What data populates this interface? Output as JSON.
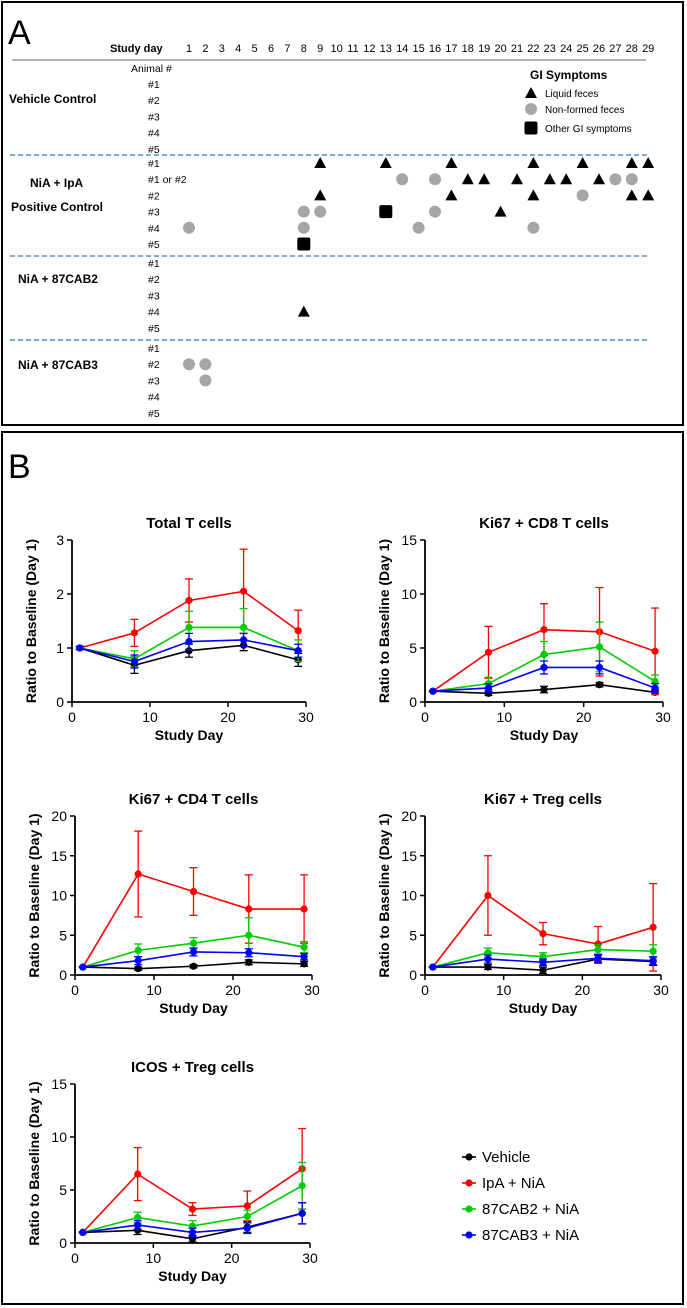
{
  "panel_a": {
    "label": "A",
    "study_day_label": "Study day",
    "days": [
      "1",
      "2",
      "3",
      "4",
      "5",
      "6",
      "7",
      "8",
      "9",
      "10",
      "11",
      "12",
      "13",
      "14",
      "15",
      "16",
      "17",
      "18",
      "19",
      "20",
      "21",
      "22",
      "23",
      "24",
      "25",
      "26",
      "27",
      "28",
      "29"
    ],
    "animal_header": "Animal #",
    "groups": [
      {
        "name": "Vehicle Control",
        "animals": [
          "#1",
          "#2",
          "#3",
          "#4",
          "#5"
        ]
      },
      {
        "name": "NiA + IpA",
        "name2": "Positive Control",
        "animals": [
          "#1",
          "#1 or #2",
          "#2",
          "#3",
          "#4",
          "#5"
        ]
      },
      {
        "name": "NiA + 87CAB2",
        "animals": [
          "#1",
          "#2",
          "#3",
          "#4",
          "#5"
        ]
      },
      {
        "name": "NiA + 87CAB3",
        "animals": [
          "#1",
          "#2",
          "#3",
          "#4",
          "#5"
        ]
      }
    ],
    "legend": {
      "title": "GI Symptoms",
      "items": [
        {
          "label": "Liquid feces",
          "symbol": "triangle"
        },
        {
          "label": "Non-formed feces",
          "symbol": "circle"
        },
        {
          "label": "Other GI symptoms",
          "symbol": "square"
        }
      ]
    },
    "colors": {
      "triangle": "#000000",
      "circle": "#a6a6a6",
      "square": "#000000",
      "divider": "#2e75b6"
    },
    "events": [
      {
        "group": 1,
        "animal": 0,
        "day": 9,
        "symbol": "triangle"
      },
      {
        "group": 1,
        "animal": 0,
        "day": 13,
        "symbol": "triangle"
      },
      {
        "group": 1,
        "animal": 0,
        "day": 17,
        "symbol": "triangle"
      },
      {
        "group": 1,
        "animal": 0,
        "day": 22,
        "symbol": "triangle"
      },
      {
        "group": 1,
        "animal": 0,
        "day": 25,
        "symbol": "triangle"
      },
      {
        "group": 1,
        "animal": 0,
        "day": 28,
        "symbol": "triangle"
      },
      {
        "group": 1,
        "animal": 0,
        "day": 29,
        "symbol": "triangle"
      },
      {
        "group": 1,
        "animal": 1,
        "day": 14,
        "symbol": "circle"
      },
      {
        "group": 1,
        "animal": 1,
        "day": 16,
        "symbol": "circle"
      },
      {
        "group": 1,
        "animal": 1,
        "day": 18,
        "symbol": "triangle"
      },
      {
        "group": 1,
        "animal": 1,
        "day": 19,
        "symbol": "triangle"
      },
      {
        "group": 1,
        "animal": 1,
        "day": 21,
        "symbol": "triangle"
      },
      {
        "group": 1,
        "animal": 1,
        "day": 23,
        "symbol": "triangle"
      },
      {
        "group": 1,
        "animal": 1,
        "day": 24,
        "symbol": "triangle"
      },
      {
        "group": 1,
        "animal": 1,
        "day": 26,
        "symbol": "triangle"
      },
      {
        "group": 1,
        "animal": 1,
        "day": 27,
        "symbol": "circle"
      },
      {
        "group": 1,
        "animal": 1,
        "day": 28,
        "symbol": "circle"
      },
      {
        "group": 1,
        "animal": 2,
        "day": 9,
        "symbol": "triangle"
      },
      {
        "group": 1,
        "animal": 2,
        "day": 17,
        "symbol": "triangle"
      },
      {
        "group": 1,
        "animal": 2,
        "day": 22,
        "symbol": "triangle"
      },
      {
        "group": 1,
        "animal": 2,
        "day": 25,
        "symbol": "circle"
      },
      {
        "group": 1,
        "animal": 2,
        "day": 28,
        "symbol": "triangle"
      },
      {
        "group": 1,
        "animal": 2,
        "day": 29,
        "symbol": "triangle"
      },
      {
        "group": 1,
        "animal": 3,
        "day": 8,
        "symbol": "circle"
      },
      {
        "group": 1,
        "animal": 3,
        "day": 9,
        "symbol": "circle"
      },
      {
        "group": 1,
        "animal": 3,
        "day": 13,
        "symbol": "square"
      },
      {
        "group": 1,
        "animal": 3,
        "day": 16,
        "symbol": "circle"
      },
      {
        "group": 1,
        "animal": 3,
        "day": 20,
        "symbol": "triangle"
      },
      {
        "group": 1,
        "animal": 4,
        "day": 1,
        "symbol": "circle"
      },
      {
        "group": 1,
        "animal": 4,
        "day": 8,
        "symbol": "circle"
      },
      {
        "group": 1,
        "animal": 4,
        "day": 15,
        "symbol": "circle"
      },
      {
        "group": 1,
        "animal": 4,
        "day": 22,
        "symbol": "circle"
      },
      {
        "group": 1,
        "animal": 5,
        "day": 8,
        "symbol": "square"
      },
      {
        "group": 2,
        "animal": 3,
        "day": 8,
        "symbol": "triangle"
      },
      {
        "group": 3,
        "animal": 1,
        "day": 1,
        "symbol": "circle"
      },
      {
        "group": 3,
        "animal": 1,
        "day": 2,
        "symbol": "circle"
      },
      {
        "group": 3,
        "animal": 2,
        "day": 2,
        "symbol": "circle"
      }
    ]
  },
  "panel_b_label": "B",
  "legend": [
    {
      "label": "Vehicle",
      "color": "#000000"
    },
    {
      "label": "IpA + NiA",
      "color": "#ff0000"
    },
    {
      "label": "87CAB2 + NiA",
      "color": "#00cc00"
    },
    {
      "label": "87CAB3 + NiA",
      "color": "#0000ff"
    }
  ],
  "chart_data": [
    {
      "type": "line",
      "title": "Total T cells",
      "xlabel": "Study Day",
      "ylabel": "Ratio to  Baseline (Day 1)",
      "x": [
        1,
        8,
        15,
        22,
        29
      ],
      "xlim": [
        0,
        30
      ],
      "xticks": [
        0,
        10,
        20,
        30
      ],
      "ylim": [
        0,
        3
      ],
      "yticks": [
        0,
        1,
        2,
        3
      ],
      "series": [
        {
          "name": "Vehicle",
          "color": "#000000",
          "values": [
            1.0,
            0.68,
            0.95,
            1.05,
            0.78
          ],
          "errors": [
            0.03,
            0.15,
            0.12,
            0.1,
            0.12
          ]
        },
        {
          "name": "IpA + NiA",
          "color": "#ff0000",
          "values": [
            1.0,
            1.28,
            1.88,
            2.05,
            1.32
          ],
          "errors": [
            0.03,
            0.25,
            0.4,
            0.78,
            0.38
          ]
        },
        {
          "name": "87CAB2 + NiA",
          "color": "#00cc00",
          "values": [
            1.0,
            0.8,
            1.38,
            1.38,
            0.95
          ],
          "errors": [
            0.03,
            0.15,
            0.3,
            0.35,
            0.2
          ]
        },
        {
          "name": "87CAB3 + NiA",
          "color": "#0000ff",
          "values": [
            1.0,
            0.75,
            1.12,
            1.15,
            0.95
          ],
          "errors": [
            0.03,
            0.12,
            0.15,
            0.12,
            0.12
          ]
        }
      ]
    },
    {
      "type": "line",
      "title": "Ki67 + CD8 T cells",
      "xlabel": "Study Day",
      "ylabel": "Ratio to  Baseline (Day 1)",
      "x": [
        1,
        8,
        15,
        22,
        29
      ],
      "xlim": [
        0,
        30
      ],
      "xticks": [
        0,
        10,
        20,
        30
      ],
      "ylim": [
        0,
        15
      ],
      "yticks": [
        0,
        5,
        10,
        15
      ],
      "series": [
        {
          "name": "Vehicle",
          "color": "#000000",
          "values": [
            1.0,
            0.8,
            1.15,
            1.6,
            0.9
          ],
          "errors": [
            0.05,
            0.2,
            0.3,
            0.2,
            0.2
          ]
        },
        {
          "name": "IpA + NiA",
          "color": "#ff0000",
          "values": [
            1.0,
            4.6,
            6.7,
            6.5,
            4.7
          ],
          "errors": [
            0.05,
            2.4,
            2.4,
            4.1,
            4.0
          ]
        },
        {
          "name": "87CAB2 + NiA",
          "color": "#00cc00",
          "values": [
            1.0,
            1.7,
            4.4,
            5.1,
            1.9
          ],
          "errors": [
            0.05,
            0.6,
            1.2,
            2.3,
            0.6
          ]
        },
        {
          "name": "87CAB3 + NiA",
          "color": "#0000ff",
          "values": [
            1.0,
            1.3,
            3.2,
            3.2,
            1.3
          ],
          "errors": [
            0.05,
            0.4,
            0.6,
            0.6,
            0.4
          ]
        }
      ]
    },
    {
      "type": "line",
      "title": "Ki67 + CD4 T cells",
      "xlabel": "Study Day",
      "ylabel": "Ratio to  Baseline (Day 1)",
      "x": [
        1,
        8,
        15,
        22,
        29
      ],
      "xlim": [
        0,
        30
      ],
      "xticks": [
        0,
        10,
        20,
        30
      ],
      "ylim": [
        0,
        20
      ],
      "yticks": [
        0,
        5,
        10,
        15,
        20
      ],
      "series": [
        {
          "name": "Vehicle",
          "color": "#000000",
          "values": [
            1.0,
            0.8,
            1.1,
            1.6,
            1.4
          ],
          "errors": [
            0.05,
            0.2,
            0.2,
            0.3,
            0.3
          ]
        },
        {
          "name": "IpA + NiA",
          "color": "#ff0000",
          "values": [
            1.0,
            12.7,
            10.5,
            8.3,
            8.3
          ],
          "errors": [
            0.05,
            5.4,
            3.0,
            4.3,
            4.3
          ]
        },
        {
          "name": "87CAB2 + NiA",
          "color": "#00cc00",
          "values": [
            1.0,
            3.1,
            4.0,
            5.0,
            3.5
          ],
          "errors": [
            0.05,
            0.8,
            0.7,
            2.2,
            0.7
          ]
        },
        {
          "name": "87CAB3 + NiA",
          "color": "#0000ff",
          "values": [
            1.0,
            1.8,
            2.9,
            2.8,
            2.3
          ],
          "errors": [
            0.05,
            0.5,
            0.5,
            0.5,
            0.4
          ]
        }
      ]
    },
    {
      "type": "line",
      "title": "Ki67 + Treg cells",
      "xlabel": "Study Day",
      "ylabel": "Ratio to  Baseline (Day 1)",
      "x": [
        1,
        8,
        15,
        22,
        29
      ],
      "xlim": [
        0,
        30
      ],
      "xticks": [
        0,
        10,
        20,
        30
      ],
      "ylim": [
        0,
        20
      ],
      "yticks": [
        0,
        5,
        10,
        15,
        20
      ],
      "series": [
        {
          "name": "Vehicle",
          "color": "#000000",
          "values": [
            1.0,
            1.0,
            0.6,
            2.0,
            1.7
          ],
          "errors": [
            0.05,
            0.3,
            0.4,
            0.5,
            0.5
          ]
        },
        {
          "name": "IpA + NiA",
          "color": "#ff0000",
          "values": [
            1.0,
            10.0,
            5.2,
            3.9,
            6.0
          ],
          "errors": [
            0.05,
            5.0,
            1.4,
            2.2,
            5.5
          ]
        },
        {
          "name": "87CAB2 + NiA",
          "color": "#00cc00",
          "values": [
            1.0,
            2.8,
            2.3,
            3.2,
            3.0
          ],
          "errors": [
            0.05,
            0.6,
            0.5,
            0.6,
            0.8
          ]
        },
        {
          "name": "87CAB3 + NiA",
          "color": "#0000ff",
          "values": [
            1.0,
            2.0,
            1.6,
            2.1,
            1.8
          ],
          "errors": [
            0.05,
            0.5,
            0.4,
            0.5,
            0.5
          ]
        }
      ]
    },
    {
      "type": "line",
      "title": "ICOS + Treg cells",
      "xlabel": "Study Day",
      "ylabel": "Ratio to  Baseline (Day 1)",
      "x": [
        1,
        8,
        15,
        22,
        29
      ],
      "xlim": [
        0,
        30
      ],
      "xticks": [
        0,
        10,
        20,
        30
      ],
      "ylim": [
        0,
        15
      ],
      "yticks": [
        0,
        5,
        10,
        15
      ],
      "series": [
        {
          "name": "Vehicle",
          "color": "#000000",
          "values": [
            1.0,
            1.2,
            0.4,
            1.5,
            2.8
          ],
          "errors": [
            0.05,
            0.4,
            0.3,
            0.5,
            1.0
          ]
        },
        {
          "name": "IpA + NiA",
          "color": "#ff0000",
          "values": [
            1.0,
            6.5,
            3.2,
            3.5,
            7.0
          ],
          "errors": [
            0.05,
            2.5,
            0.6,
            1.4,
            3.8
          ]
        },
        {
          "name": "87CAB2 + NiA",
          "color": "#00cc00",
          "values": [
            1.0,
            2.4,
            1.6,
            2.5,
            5.4
          ],
          "errors": [
            0.05,
            0.5,
            0.5,
            0.6,
            2.2
          ]
        },
        {
          "name": "87CAB3 + NiA",
          "color": "#0000ff",
          "values": [
            1.0,
            1.7,
            1.0,
            1.4,
            2.8
          ],
          "errors": [
            0.05,
            0.4,
            0.4,
            0.5,
            1.0
          ]
        }
      ]
    }
  ]
}
